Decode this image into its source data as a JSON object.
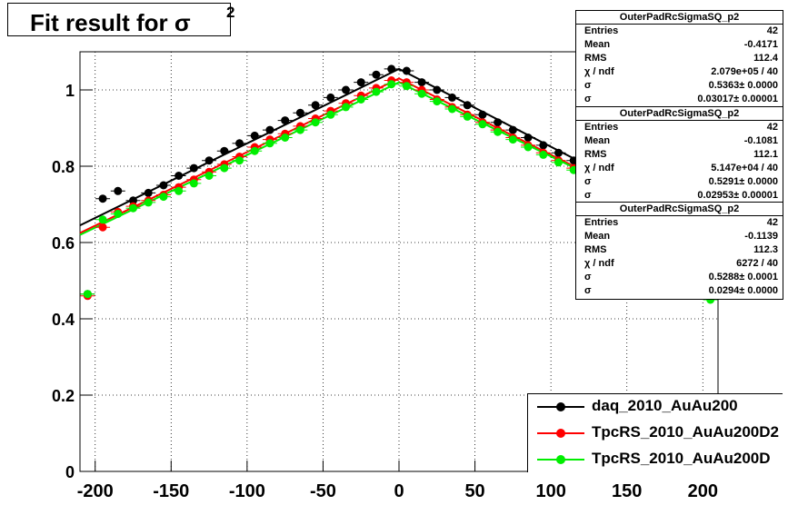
{
  "title": {
    "text": "Fit result for σ",
    "superscript": "2"
  },
  "stat_boxes": [
    {
      "name": "OuterPadRcSigmaSQ_p2",
      "rows": [
        {
          "k": "Entries",
          "v": "42"
        },
        {
          "k": "Mean",
          "v": "-0.4171"
        },
        {
          "k": "RMS",
          "v": "112.4"
        },
        {
          "k": "χ / ndf",
          "v": "2.079e+05 / 40"
        },
        {
          "k": "σ",
          "v": "0.5363± 0.0000"
        },
        {
          "k": "σ",
          "v": "0.03017± 0.00001"
        }
      ]
    },
    {
      "name": "OuterPadRcSigmaSQ_p2",
      "rows": [
        {
          "k": "Entries",
          "v": "42"
        },
        {
          "k": "Mean",
          "v": "-0.1081"
        },
        {
          "k": "RMS",
          "v": "112.1"
        },
        {
          "k": "χ / ndf",
          "v": "5.147e+04 / 40"
        },
        {
          "k": "σ",
          "v": "0.5291± 0.0000"
        },
        {
          "k": "σ",
          "v": "0.02953± 0.00001"
        }
      ]
    },
    {
      "name": "OuterPadRcSigmaSQ_p2",
      "rows": [
        {
          "k": "Entries",
          "v": "42"
        },
        {
          "k": "Mean",
          "v": "-0.1139"
        },
        {
          "k": "RMS",
          "v": "112.3"
        },
        {
          "k": "χ / ndf",
          "v": "6272 / 40"
        },
        {
          "k": "σ",
          "v": "0.5288± 0.0001"
        },
        {
          "k": "σ",
          "v": "0.0294± 0.0000"
        }
      ]
    }
  ],
  "legend": [
    {
      "label": "daq_2010_AuAu200",
      "color": "#000000"
    },
    {
      "label": "TpcRS_2010_AuAu200D2",
      "color": "#ff0000"
    },
    {
      "label": "TpcRS_2010_AuAu200D",
      "color": "#00ee00"
    }
  ],
  "chart_data": {
    "type": "scatter",
    "title": "Fit result for σ2",
    "xlim": [
      -210,
      210
    ],
    "ylim": [
      0,
      1.1
    ],
    "x_ticks": [
      -200,
      -150,
      -100,
      -50,
      0,
      50,
      100,
      150,
      200
    ],
    "y_ticks": [
      0,
      0.2,
      0.4,
      0.6,
      0.8,
      1
    ],
    "x_tick_labels": [
      "-200",
      "-150",
      "-100",
      "-50",
      "0",
      "50",
      "100",
      "150",
      "200"
    ],
    "y_tick_labels": [
      "0",
      "0.2",
      "0.4",
      "0.6",
      "0.8",
      "1"
    ],
    "series": [
      {
        "name": "daq_2010_AuAu200",
        "color": "#000000",
        "x": [
          -205,
          -195,
          -185,
          -175,
          -165,
          -155,
          -145,
          -135,
          -125,
          -115,
          -105,
          -95,
          -85,
          -75,
          -65,
          -55,
          -45,
          -35,
          -25,
          -15,
          -5,
          5,
          15,
          25,
          35,
          45,
          55,
          65,
          75,
          85,
          95,
          105,
          115,
          125
        ],
        "y": [
          0.465,
          0.715,
          0.735,
          0.71,
          0.73,
          0.75,
          0.775,
          0.795,
          0.815,
          0.84,
          0.86,
          0.88,
          0.895,
          0.92,
          0.94,
          0.96,
          0.98,
          1.0,
          1.02,
          1.04,
          1.055,
          1.05,
          1.02,
          1.0,
          0.98,
          0.96,
          0.935,
          0.915,
          0.895,
          0.875,
          0.855,
          0.835,
          0.815,
          0.79
        ],
        "fit": {
          "x": [
            -210,
            0,
            125
          ],
          "y": [
            0.645,
            1.055,
            0.8
          ]
        }
      },
      {
        "name": "TpcRS_2010_AuAu200D2",
        "color": "#ff0000",
        "x": [
          -205,
          -195,
          -185,
          -175,
          -165,
          -155,
          -145,
          -135,
          -125,
          -115,
          -105,
          -95,
          -85,
          -75,
          -65,
          -55,
          -45,
          -35,
          -25,
          -15,
          -5,
          5,
          15,
          25,
          35,
          45,
          55,
          65,
          75,
          85,
          95,
          105,
          115,
          125
        ],
        "y": [
          0.46,
          0.64,
          0.68,
          0.695,
          0.71,
          0.725,
          0.745,
          0.765,
          0.785,
          0.805,
          0.825,
          0.85,
          0.87,
          0.885,
          0.905,
          0.925,
          0.945,
          0.965,
          0.985,
          1.005,
          1.025,
          1.02,
          1.0,
          0.975,
          0.955,
          0.935,
          0.915,
          0.895,
          0.875,
          0.855,
          0.835,
          0.815,
          0.795,
          0.775
        ],
        "fit": {
          "x": [
            -210,
            0,
            125
          ],
          "y": [
            0.625,
            1.03,
            0.78
          ]
        }
      },
      {
        "name": "TpcRS_2010_AuAu200D",
        "color": "#00ee00",
        "x": [
          -205,
          -195,
          -185,
          -175,
          -165,
          -155,
          -145,
          -135,
          -125,
          -115,
          -105,
          -95,
          -85,
          -75,
          -65,
          -55,
          -45,
          -35,
          -25,
          -15,
          -5,
          5,
          15,
          25,
          35,
          45,
          55,
          65,
          75,
          85,
          95,
          105,
          115,
          125,
          135,
          145,
          155,
          165,
          175,
          205
        ],
        "y": [
          0.465,
          0.66,
          0.675,
          0.69,
          0.705,
          0.72,
          0.735,
          0.755,
          0.775,
          0.795,
          0.815,
          0.84,
          0.86,
          0.875,
          0.895,
          0.915,
          0.935,
          0.955,
          0.975,
          0.995,
          1.015,
          1.01,
          0.99,
          0.97,
          0.95,
          0.93,
          0.91,
          0.89,
          0.87,
          0.85,
          0.83,
          0.81,
          0.79,
          0.77,
          0.75,
          0.73,
          0.71,
          0.69,
          0.67,
          0.45
        ],
        "fit": {
          "x": [
            -210,
            0,
            175
          ],
          "y": [
            0.62,
            1.02,
            0.68
          ]
        }
      }
    ]
  }
}
